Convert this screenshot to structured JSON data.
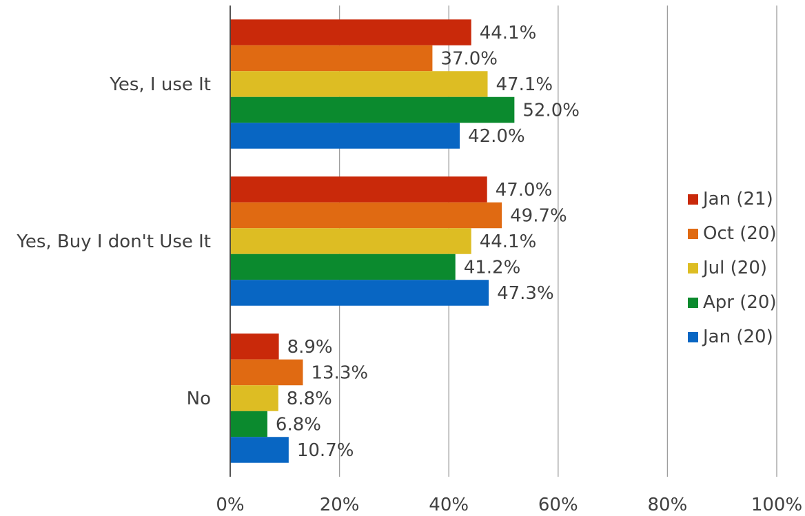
{
  "chart_data": {
    "type": "bar",
    "orientation": "horizontal",
    "categories": [
      "Yes, I use It",
      "Yes, Buy I don't Use It",
      "No"
    ],
    "series": [
      {
        "name": "Jan (21)",
        "color": "#C9290A",
        "values": [
          44.1,
          47.0,
          8.9
        ],
        "labels": [
          "44.1%",
          "47.0%",
          "8.9%"
        ]
      },
      {
        "name": "Oct (20)",
        "color": "#E06A12",
        "values": [
          37.0,
          49.7,
          13.3
        ],
        "labels": [
          "37.0%",
          "49.7%",
          "13.3%"
        ]
      },
      {
        "name": "Jul (20)",
        "color": "#DDBD23",
        "values": [
          47.1,
          44.1,
          8.8
        ],
        "labels": [
          "47.1%",
          "44.1%",
          "8.8%"
        ]
      },
      {
        "name": "Apr (20)",
        "color": "#0B8A2E",
        "values": [
          52.0,
          41.2,
          6.8
        ],
        "labels": [
          "52.0%",
          "41.2%",
          "6.8%"
        ]
      },
      {
        "name": "Jan (20)",
        "color": "#0866C3",
        "values": [
          42.0,
          47.3,
          10.7
        ],
        "labels": [
          "42.0%",
          "47.3%",
          "10.7%"
        ]
      }
    ],
    "xlim": [
      0,
      100
    ],
    "x_ticks": [
      "0%",
      "20%",
      "40%",
      "60%",
      "80%",
      "100%"
    ],
    "grid": true,
    "legend": "right"
  }
}
